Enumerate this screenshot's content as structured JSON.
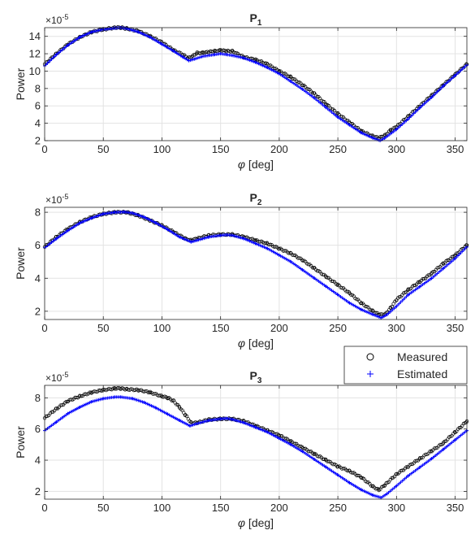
{
  "figure": {
    "legend": {
      "entries": [
        {
          "label": "Measured",
          "marker": "circle",
          "color": "#000000"
        },
        {
          "label": "Estimated",
          "marker": "plus",
          "color": "#0000ff"
        }
      ],
      "placement": "above-third-subplot-right"
    }
  },
  "chart_data": [
    {
      "type": "scatter",
      "title_main": "P",
      "title_sub": "1",
      "xlabel_symbol": "φ",
      "xlabel_unit": "[deg]",
      "ylabel": "Power",
      "exponent_label": "×10",
      "exponent_power": "-5",
      "xlim": [
        0,
        360
      ],
      "ylim": [
        2,
        15
      ],
      "xticks": [
        0,
        50,
        100,
        150,
        200,
        250,
        300,
        350
      ],
      "yticks": [
        2,
        4,
        6,
        8,
        10,
        12,
        14
      ],
      "grid": true,
      "series": [
        {
          "name": "Measured",
          "marker": "circle",
          "color": "#000000",
          "points": [
            [
              0,
              10.8
            ],
            [
              10,
              12.0
            ],
            [
              20,
              13.1
            ],
            [
              30,
              13.9
            ],
            [
              40,
              14.5
            ],
            [
              50,
              14.8
            ],
            [
              60,
              15.0
            ],
            [
              65,
              15.0
            ],
            [
              70,
              14.9
            ],
            [
              80,
              14.6
            ],
            [
              90,
              14.0
            ],
            [
              100,
              13.3
            ],
            [
              110,
              12.4
            ],
            [
              118,
              11.9
            ],
            [
              122,
              11.5
            ],
            [
              126,
              11.7
            ],
            [
              130,
              12.1
            ],
            [
              135,
              12.1
            ],
            [
              140,
              12.2
            ],
            [
              145,
              12.3
            ],
            [
              150,
              12.4
            ],
            [
              155,
              12.3
            ],
            [
              160,
              12.3
            ],
            [
              170,
              11.6
            ],
            [
              180,
              11.3
            ],
            [
              190,
              10.8
            ],
            [
              200,
              10.0
            ],
            [
              210,
              9.3
            ],
            [
              220,
              8.4
            ],
            [
              230,
              7.4
            ],
            [
              240,
              6.2
            ],
            [
              250,
              5.1
            ],
            [
              260,
              4.1
            ],
            [
              270,
              3.1
            ],
            [
              280,
              2.5
            ],
            [
              285,
              2.3
            ],
            [
              290,
              2.6
            ],
            [
              295,
              3.2
            ],
            [
              300,
              3.6
            ],
            [
              310,
              4.8
            ],
            [
              320,
              6.0
            ],
            [
              330,
              7.2
            ],
            [
              340,
              8.4
            ],
            [
              350,
              9.6
            ],
            [
              360,
              10.8
            ]
          ]
        },
        {
          "name": "Estimated",
          "marker": "plus",
          "color": "#0000ff",
          "points": [
            [
              0,
              10.6
            ],
            [
              10,
              11.9
            ],
            [
              20,
              13.0
            ],
            [
              30,
              13.9
            ],
            [
              40,
              14.5
            ],
            [
              50,
              14.8
            ],
            [
              60,
              14.95
            ],
            [
              65,
              15.0
            ],
            [
              70,
              14.9
            ],
            [
              80,
              14.5
            ],
            [
              90,
              13.9
            ],
            [
              100,
              13.1
            ],
            [
              110,
              12.3
            ],
            [
              118,
              11.6
            ],
            [
              123,
              11.2
            ],
            [
              128,
              11.4
            ],
            [
              135,
              11.7
            ],
            [
              145,
              11.9
            ],
            [
              150,
              12.0
            ],
            [
              155,
              11.9
            ],
            [
              160,
              11.8
            ],
            [
              170,
              11.5
            ],
            [
              180,
              11.0
            ],
            [
              190,
              10.4
            ],
            [
              200,
              9.7
            ],
            [
              210,
              8.8
            ],
            [
              220,
              7.9
            ],
            [
              230,
              6.9
            ],
            [
              240,
              5.8
            ],
            [
              250,
              4.7
            ],
            [
              260,
              3.8
            ],
            [
              270,
              2.9
            ],
            [
              280,
              2.3
            ],
            [
              286,
              2.0
            ],
            [
              290,
              2.3
            ],
            [
              300,
              3.3
            ],
            [
              310,
              4.5
            ],
            [
              320,
              5.8
            ],
            [
              330,
              7.0
            ],
            [
              340,
              8.3
            ],
            [
              350,
              9.5
            ],
            [
              360,
              10.7
            ]
          ]
        }
      ]
    },
    {
      "type": "scatter",
      "title_main": "P",
      "title_sub": "2",
      "xlabel_symbol": "φ",
      "xlabel_unit": "[deg]",
      "ylabel": "Power",
      "exponent_label": "×10",
      "exponent_power": "-5",
      "xlim": [
        0,
        360
      ],
      "ylim": [
        1.5,
        8.3
      ],
      "xticks": [
        0,
        50,
        100,
        150,
        200,
        250,
        300,
        350
      ],
      "yticks": [
        2,
        4,
        6,
        8
      ],
      "grid": true,
      "series": [
        {
          "name": "Measured",
          "marker": "circle",
          "color": "#000000",
          "points": [
            [
              0,
              5.9
            ],
            [
              10,
              6.5
            ],
            [
              20,
              7.0
            ],
            [
              30,
              7.4
            ],
            [
              40,
              7.7
            ],
            [
              50,
              7.9
            ],
            [
              60,
              8.0
            ],
            [
              70,
              8.0
            ],
            [
              80,
              7.8
            ],
            [
              90,
              7.5
            ],
            [
              100,
              7.2
            ],
            [
              110,
              6.8
            ],
            [
              120,
              6.4
            ],
            [
              125,
              6.3
            ],
            [
              130,
              6.4
            ],
            [
              140,
              6.6
            ],
            [
              150,
              6.65
            ],
            [
              160,
              6.65
            ],
            [
              170,
              6.5
            ],
            [
              180,
              6.3
            ],
            [
              190,
              6.1
            ],
            [
              200,
              5.8
            ],
            [
              210,
              5.5
            ],
            [
              220,
              5.1
            ],
            [
              230,
              4.6
            ],
            [
              240,
              4.1
            ],
            [
              250,
              3.6
            ],
            [
              260,
              3.1
            ],
            [
              270,
              2.5
            ],
            [
              280,
              2.0
            ],
            [
              285,
              1.8
            ],
            [
              290,
              1.8
            ],
            [
              295,
              2.2
            ],
            [
              300,
              2.7
            ],
            [
              310,
              3.3
            ],
            [
              320,
              3.8
            ],
            [
              330,
              4.3
            ],
            [
              340,
              4.9
            ],
            [
              350,
              5.4
            ],
            [
              360,
              6.0
            ]
          ]
        },
        {
          "name": "Estimated",
          "marker": "plus",
          "color": "#0000ff",
          "points": [
            [
              0,
              5.85
            ],
            [
              10,
              6.4
            ],
            [
              20,
              6.9
            ],
            [
              30,
              7.35
            ],
            [
              40,
              7.65
            ],
            [
              50,
              7.9
            ],
            [
              60,
              8.0
            ],
            [
              68,
              8.02
            ],
            [
              75,
              7.95
            ],
            [
              85,
              7.7
            ],
            [
              95,
              7.35
            ],
            [
              105,
              6.95
            ],
            [
              115,
              6.5
            ],
            [
              125,
              6.2
            ],
            [
              130,
              6.3
            ],
            [
              140,
              6.5
            ],
            [
              150,
              6.6
            ],
            [
              155,
              6.63
            ],
            [
              160,
              6.6
            ],
            [
              170,
              6.4
            ],
            [
              180,
              6.1
            ],
            [
              190,
              5.8
            ],
            [
              200,
              5.4
            ],
            [
              210,
              5.0
            ],
            [
              220,
              4.5
            ],
            [
              230,
              4.0
            ],
            [
              240,
              3.5
            ],
            [
              250,
              3.0
            ],
            [
              260,
              2.5
            ],
            [
              270,
              2.1
            ],
            [
              280,
              1.8
            ],
            [
              287,
              1.6
            ],
            [
              292,
              1.8
            ],
            [
              300,
              2.3
            ],
            [
              310,
              3.0
            ],
            [
              320,
              3.5
            ],
            [
              330,
              4.0
            ],
            [
              340,
              4.6
            ],
            [
              350,
              5.2
            ],
            [
              360,
              5.9
            ]
          ]
        }
      ]
    },
    {
      "type": "scatter",
      "title_main": "P",
      "title_sub": "3",
      "xlabel_symbol": "φ",
      "xlabel_unit": "[deg]",
      "ylabel": "Power",
      "exponent_label": "×10",
      "exponent_power": "-5",
      "xlim": [
        0,
        360
      ],
      "ylim": [
        1.5,
        8.8
      ],
      "xticks": [
        0,
        50,
        100,
        150,
        200,
        250,
        300,
        350
      ],
      "yticks": [
        2,
        4,
        6,
        8
      ],
      "grid": true,
      "series": [
        {
          "name": "Measured",
          "marker": "circle",
          "color": "#000000",
          "points": [
            [
              0,
              6.7
            ],
            [
              10,
              7.3
            ],
            [
              20,
              7.8
            ],
            [
              30,
              8.1
            ],
            [
              40,
              8.35
            ],
            [
              50,
              8.5
            ],
            [
              60,
              8.6
            ],
            [
              65,
              8.6
            ],
            [
              70,
              8.55
            ],
            [
              80,
              8.5
            ],
            [
              90,
              8.35
            ],
            [
              100,
              8.1
            ],
            [
              105,
              8.0
            ],
            [
              110,
              7.8
            ],
            [
              115,
              7.4
            ],
            [
              120,
              6.9
            ],
            [
              125,
              6.4
            ],
            [
              130,
              6.4
            ],
            [
              140,
              6.6
            ],
            [
              150,
              6.65
            ],
            [
              160,
              6.65
            ],
            [
              170,
              6.5
            ],
            [
              180,
              6.2
            ],
            [
              190,
              5.9
            ],
            [
              200,
              5.6
            ],
            [
              210,
              5.2
            ],
            [
              220,
              4.8
            ],
            [
              230,
              4.4
            ],
            [
              240,
              4.0
            ],
            [
              250,
              3.6
            ],
            [
              260,
              3.3
            ],
            [
              270,
              2.9
            ],
            [
              280,
              2.3
            ],
            [
              285,
              2.1
            ],
            [
              290,
              2.4
            ],
            [
              300,
              3.1
            ],
            [
              310,
              3.6
            ],
            [
              320,
              4.1
            ],
            [
              330,
              4.6
            ],
            [
              340,
              5.1
            ],
            [
              350,
              5.8
            ],
            [
              360,
              6.5
            ]
          ]
        },
        {
          "name": "Estimated",
          "marker": "plus",
          "color": "#0000ff",
          "points": [
            [
              0,
              5.9
            ],
            [
              10,
              6.45
            ],
            [
              20,
              7.0
            ],
            [
              30,
              7.4
            ],
            [
              40,
              7.75
            ],
            [
              50,
              7.95
            ],
            [
              60,
              8.05
            ],
            [
              65,
              8.05
            ],
            [
              75,
              7.95
            ],
            [
              85,
              7.7
            ],
            [
              95,
              7.35
            ],
            [
              105,
              6.95
            ],
            [
              115,
              6.55
            ],
            [
              124,
              6.2
            ],
            [
              130,
              6.35
            ],
            [
              140,
              6.55
            ],
            [
              150,
              6.65
            ],
            [
              155,
              6.68
            ],
            [
              160,
              6.62
            ],
            [
              170,
              6.4
            ],
            [
              180,
              6.1
            ],
            [
              190,
              5.8
            ],
            [
              200,
              5.4
            ],
            [
              210,
              5.0
            ],
            [
              220,
              4.55
            ],
            [
              230,
              4.05
            ],
            [
              240,
              3.55
            ],
            [
              250,
              3.05
            ],
            [
              260,
              2.55
            ],
            [
              270,
              2.1
            ],
            [
              280,
              1.75
            ],
            [
              287,
              1.6
            ],
            [
              292,
              1.85
            ],
            [
              300,
              2.35
            ],
            [
              310,
              3.0
            ],
            [
              320,
              3.55
            ],
            [
              330,
              4.1
            ],
            [
              340,
              4.7
            ],
            [
              350,
              5.3
            ],
            [
              360,
              5.9
            ]
          ]
        }
      ]
    }
  ]
}
